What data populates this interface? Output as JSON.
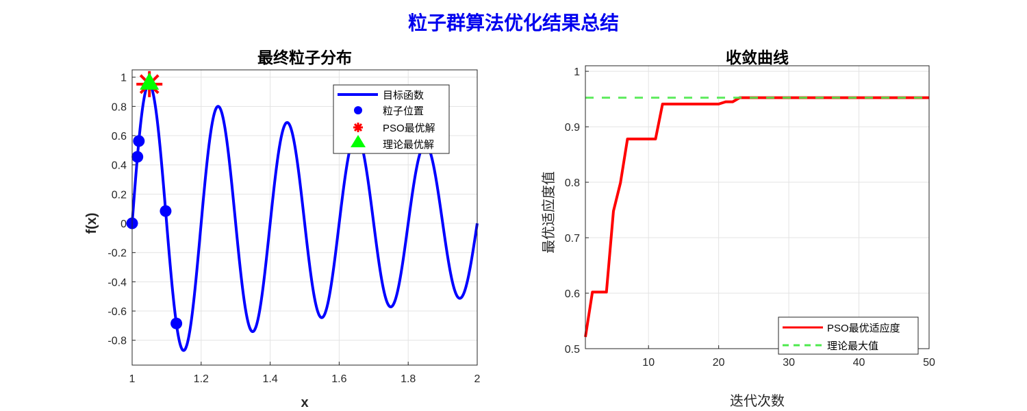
{
  "suptitle": "粒子群算法优化结果总结",
  "colors": {
    "suptitle": "#0000ee",
    "curve": "#0000ff",
    "particles": "#0000ff",
    "pso_best": "#ff0000",
    "theory_best": "#00ff00",
    "convergence": "#ff0000",
    "theory_line": "#4de94d"
  },
  "chart_data": [
    {
      "type": "line",
      "title": "最终粒子分布",
      "xlabel": "x",
      "ylabel": "f(x)",
      "function": "sin(10*pi*x)/x",
      "xlim": [
        1,
        2
      ],
      "ylim": [
        -0.97,
        1.05
      ],
      "xticks": [
        1,
        1.2,
        1.4,
        1.6,
        1.8,
        2
      ],
      "xtick_labels": [
        "1",
        "1.2",
        "1.4",
        "1.6",
        "1.8",
        "2"
      ],
      "yticks": [
        -0.8,
        -0.6,
        -0.4,
        -0.2,
        0,
        0.2,
        0.4,
        0.6,
        0.8,
        1
      ],
      "ytick_labels": [
        "-0.8",
        "-0.6",
        "-0.4",
        "-0.2",
        "0",
        "0.2",
        "0.4",
        "0.6",
        "0.8",
        "1"
      ],
      "grid": true,
      "legend_position": "top-right",
      "series": [
        {
          "name": "目标函数",
          "kind": "line"
        },
        {
          "name": "粒子位置",
          "kind": "scatter",
          "points": [
            [
              1.0,
              0.0
            ],
            [
              1.0153,
              0.455
            ],
            [
              1.0195,
              0.563
            ],
            [
              1.0971,
              0.084
            ],
            [
              1.1282,
              -0.685
            ]
          ]
        },
        {
          "name": "PSO最优解",
          "kind": "marker",
          "points": [
            [
              1.05,
              0.9524
            ]
          ]
        },
        {
          "name": "理论最优解",
          "kind": "marker",
          "points": [
            [
              1.05,
              0.9524
            ]
          ]
        }
      ]
    },
    {
      "type": "line",
      "title": "收敛曲线",
      "xlabel": "迭代次数",
      "ylabel": "最优适应度值",
      "xlim": [
        1,
        50
      ],
      "ylim": [
        0.5,
        1.01
      ],
      "xticks": [
        10,
        20,
        30,
        40,
        50
      ],
      "xtick_labels": [
        "10",
        "20",
        "30",
        "40",
        "50"
      ],
      "yticks": [
        0.5,
        0.6,
        0.7,
        0.8,
        0.9,
        1
      ],
      "ytick_labels": [
        "0.5",
        "0.6",
        "0.7",
        "0.8",
        "0.9",
        "1"
      ],
      "grid": true,
      "legend_position": "bottom-right",
      "series": [
        {
          "name": "PSO最优适应度",
          "x_start": 1,
          "values": [
            0.521,
            0.602,
            0.602,
            0.602,
            0.748,
            0.799,
            0.878,
            0.878,
            0.878,
            0.878,
            0.878,
            0.941,
            0.941,
            0.941,
            0.941,
            0.941,
            0.941,
            0.941,
            0.941,
            0.941,
            0.945,
            0.945,
            0.9524,
            0.9524,
            0.9524,
            0.9524,
            0.9524,
            0.9524,
            0.9524,
            0.9524,
            0.9524,
            0.9524,
            0.9524,
            0.9524,
            0.9524,
            0.9524,
            0.9524,
            0.9524,
            0.9524,
            0.9524,
            0.9524,
            0.9524,
            0.9524,
            0.9524,
            0.9524,
            0.9524,
            0.9524,
            0.9524,
            0.9524,
            0.9524
          ]
        },
        {
          "name": "理论最大值",
          "constant": 0.9524
        }
      ]
    }
  ]
}
